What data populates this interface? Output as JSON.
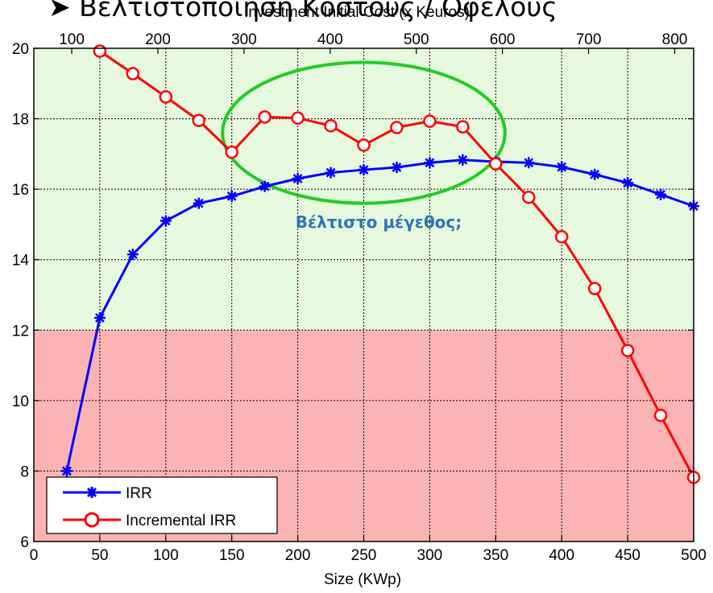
{
  "slide_title": "➤ Βελτιστοποίηση Κόστους / Οφέλους",
  "chart_data": {
    "type": "line",
    "xlabel": "Size (KWp)",
    "x2label": "Investment Initial Cost (x Keuros)",
    "xlim": [
      0,
      500
    ],
    "ylim": [
      6,
      20
    ],
    "x2lim": [
      56,
      822
    ],
    "x_ticks": [
      0,
      50,
      100,
      150,
      200,
      250,
      300,
      350,
      400,
      450,
      500
    ],
    "y_ticks": [
      6,
      8,
      10,
      12,
      14,
      16,
      18,
      20
    ],
    "x2_ticks": [
      100,
      200,
      300,
      400,
      500,
      600,
      700,
      800
    ],
    "grid": true,
    "legend_position": "bottom-left",
    "regions": [
      {
        "y_from": 12,
        "y_to": 20,
        "color": "#e6f8dd"
      },
      {
        "y_from": 6,
        "y_to": 12,
        "color": "#fbb3b3"
      }
    ],
    "series": [
      {
        "name": "IRR",
        "color": "#0000ff",
        "marker": "star",
        "x": [
          25,
          50,
          75,
          100,
          125,
          150,
          175,
          200,
          225,
          250,
          275,
          300,
          325,
          350,
          375,
          400,
          425,
          450,
          475,
          500
        ],
        "y": [
          8.0,
          12.35,
          14.15,
          15.1,
          15.6,
          15.8,
          16.08,
          16.3,
          16.47,
          16.55,
          16.62,
          16.75,
          16.83,
          16.78,
          16.75,
          16.63,
          16.42,
          16.18,
          15.85,
          15.52
        ]
      },
      {
        "name": "Incremental IRR",
        "color": "#ff0000",
        "marker": "circle",
        "x": [
          50,
          75,
          100,
          125,
          150,
          175,
          200,
          225,
          250,
          275,
          300,
          325,
          350,
          375,
          400,
          425,
          450,
          475,
          500
        ],
        "y": [
          19.92,
          19.28,
          18.62,
          17.95,
          17.05,
          18.05,
          18.02,
          17.8,
          17.25,
          17.75,
          17.93,
          17.77,
          16.72,
          15.77,
          14.65,
          13.18,
          11.42,
          9.58,
          7.82
        ]
      }
    ],
    "annotations": [
      {
        "text": "Βέλτιστο μέγεθος;",
        "x": 247,
        "y": 14.9,
        "color": "#2e75b6"
      }
    ],
    "highlight_ellipse": {
      "cx": 250,
      "cy": 17.6,
      "rx": 107,
      "ry": 2.0,
      "color": "#22cc22"
    }
  }
}
